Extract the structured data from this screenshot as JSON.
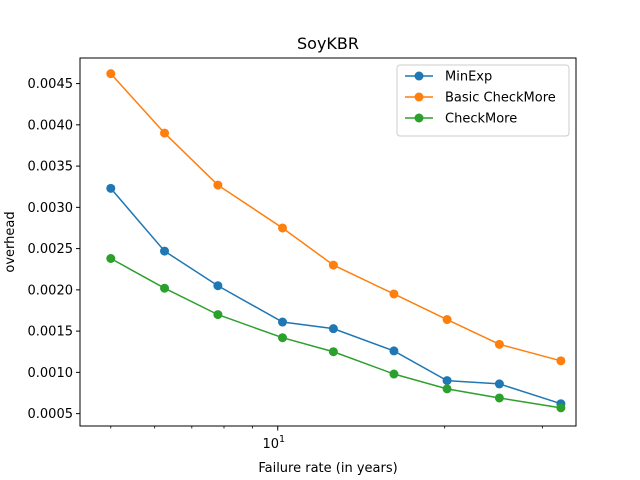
{
  "chart_data": {
    "type": "line",
    "title": "SoyKBR",
    "xlabel": "Failure rate (in years)",
    "ylabel": "overhead",
    "xscale": "log",
    "grid": false,
    "legend_position": "upper-right",
    "x": [
      5,
      6.25,
      7.8,
      10.2,
      12.6,
      16.2,
      20.2,
      25.1,
      32.4
    ],
    "xlim": [
      4.4,
      34.5
    ],
    "ylim": [
      0.00035,
      0.00481
    ],
    "y_ticks": [
      0.0005,
      0.001,
      0.0015,
      0.002,
      0.0025,
      0.003,
      0.0035,
      0.004,
      0.0045
    ],
    "y_tick_labels": [
      "0.0005",
      "0.0010",
      "0.0015",
      "0.0020",
      "0.0025",
      "0.0030",
      "0.0035",
      "0.0040",
      "0.0045"
    ],
    "x_major_tick": {
      "value": 10,
      "label_base": "10",
      "label_exp": "1"
    },
    "x_minor_ticks": [
      5,
      6,
      7,
      8,
      9,
      20,
      30
    ],
    "series": [
      {
        "name": "MinExp",
        "color": "#1f77b4",
        "values": [
          0.00323,
          0.00247,
          0.00205,
          0.00161,
          0.00153,
          0.00126,
          0.0009,
          0.00086,
          0.00062
        ]
      },
      {
        "name": "Basic CheckMore",
        "color": "#ff7f0e",
        "values": [
          0.00462,
          0.0039,
          0.00327,
          0.00275,
          0.0023,
          0.00195,
          0.00164,
          0.00134,
          0.00114
        ]
      },
      {
        "name": "CheckMore",
        "color": "#2ca02c",
        "values": [
          0.00238,
          0.00202,
          0.0017,
          0.00142,
          0.00125,
          0.00098,
          0.0008,
          0.00069,
          0.00057
        ]
      }
    ]
  }
}
